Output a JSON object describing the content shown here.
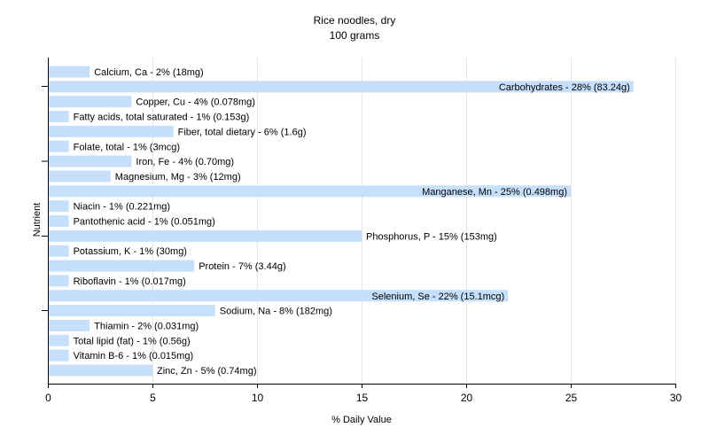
{
  "chart_data": {
    "type": "bar",
    "orientation": "horizontal",
    "title": "Rice noodles, dry",
    "subtitle": "100 grams",
    "xlabel": "% Daily Value",
    "ylabel": "Nutrient",
    "xlim": [
      0,
      30
    ],
    "xticks": [
      0,
      5,
      10,
      15,
      20,
      25,
      30
    ],
    "grid": true,
    "bar_color": "#c6e0fb",
    "grid_color": "#e6e6e6",
    "categories": [
      "Calcium, Ca",
      "Carbohydrates",
      "Copper, Cu",
      "Fatty acids, total saturated",
      "Fiber, total dietary",
      "Folate, total",
      "Iron, Fe",
      "Magnesium, Mg",
      "Manganese, Mn",
      "Niacin",
      "Pantothenic acid",
      "Phosphorus, P",
      "Potassium, K",
      "Protein",
      "Riboflavin",
      "Selenium, Se",
      "Sodium, Na",
      "Thiamin",
      "Total lipid (fat)",
      "Vitamin B-6",
      "Zinc, Zn"
    ],
    "values": [
      2,
      28,
      4,
      1,
      6,
      1,
      4,
      3,
      25,
      1,
      1,
      15,
      1,
      7,
      1,
      22,
      8,
      2,
      1,
      1,
      5
    ],
    "labels": [
      "Calcium, Ca - 2% (18mg)",
      "Carbohydrates - 28% (83.24g)",
      "Copper, Cu - 4% (0.078mg)",
      "Fatty acids, total saturated - 1% (0.153g)",
      "Fiber, total dietary - 6% (1.6g)",
      "Folate, total - 1% (3mcg)",
      "Iron, Fe - 4% (0.70mg)",
      "Magnesium, Mg - 3% (12mg)",
      "Manganese, Mn - 25% (0.498mg)",
      "Niacin - 1% (0.221mg)",
      "Pantothenic acid - 1% (0.051mg)",
      "Phosphorus, P - 15% (153mg)",
      "Potassium, K - 1% (30mg)",
      "Protein - 7% (3.44g)",
      "Riboflavin - 1% (0.017mg)",
      "Selenium, Se - 22% (15.1mcg)",
      "Sodium, Na - 8% (182mg)",
      "Thiamin - 2% (0.031mg)",
      "Total lipid (fat) - 1% (0.56g)",
      "Vitamin B-6 - 1% (0.015mg)",
      "Zinc, Zn - 5% (0.74mg)"
    ]
  }
}
